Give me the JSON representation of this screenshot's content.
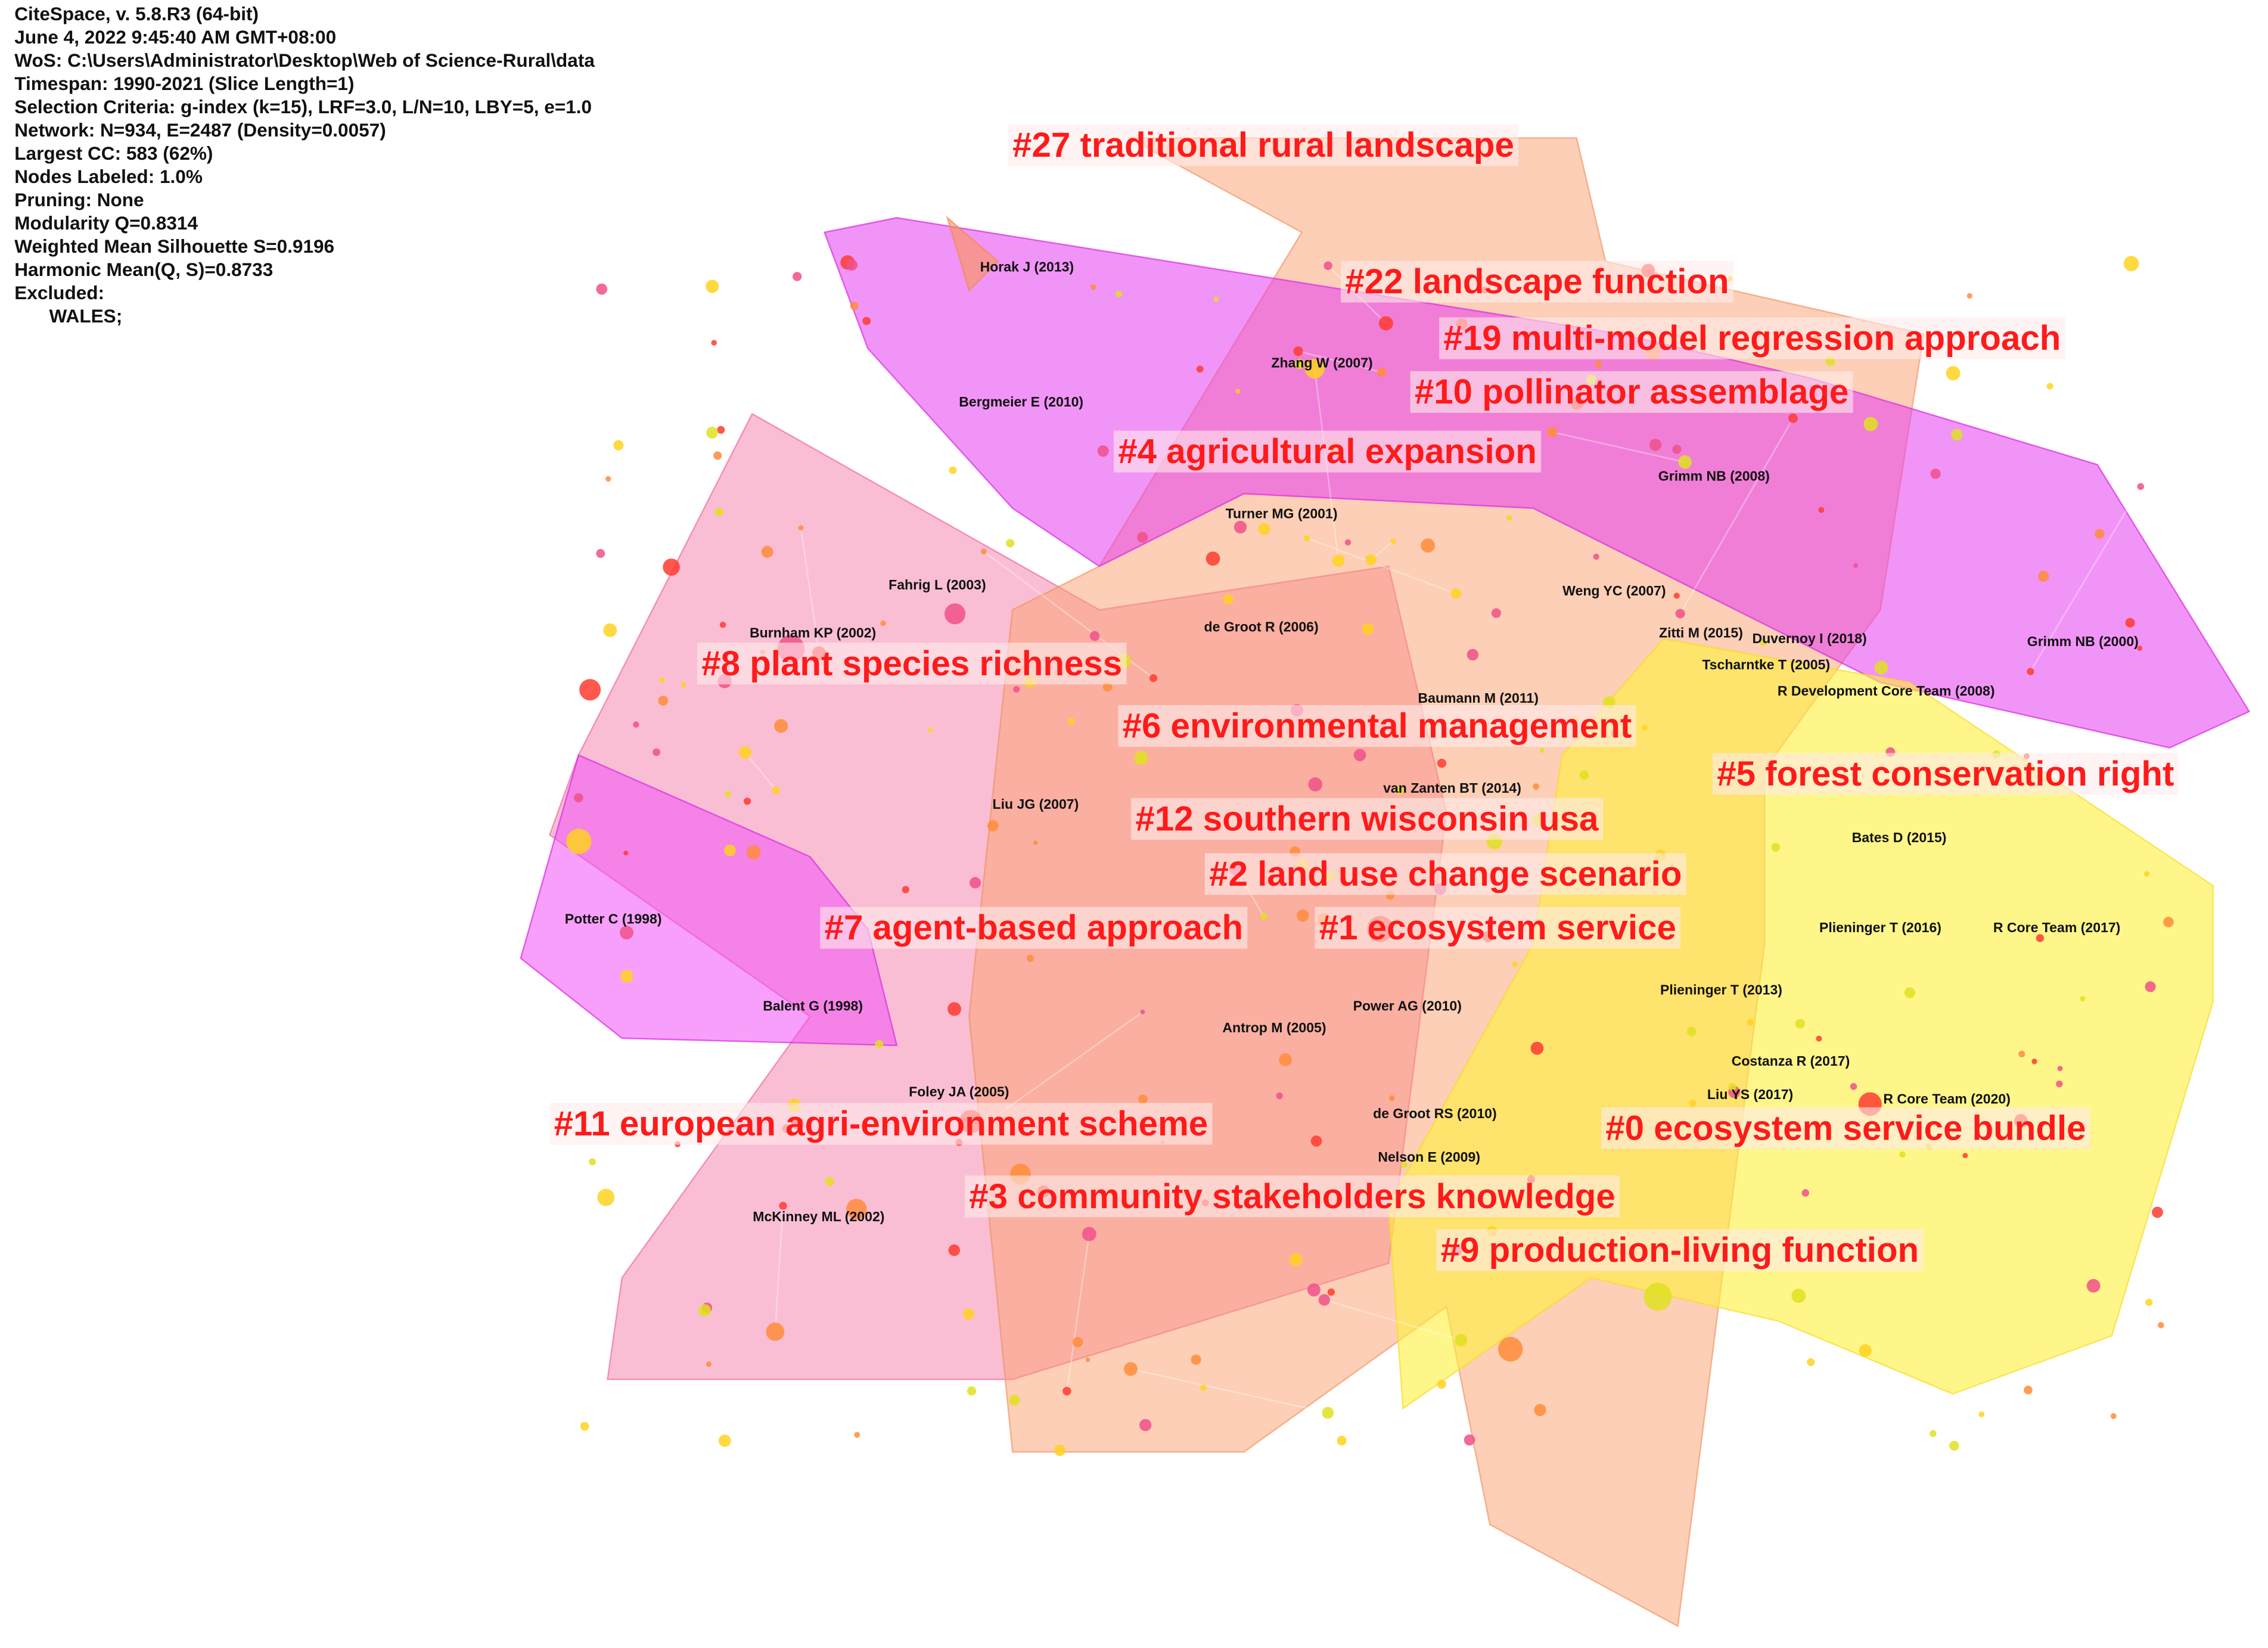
{
  "info": [
    "CiteSpace, v. 5.8.R3 (64-bit)",
    "June 4, 2022 9:45:40 AM GMT+08:00",
    "WoS: C:\\Users\\Administrator\\Desktop\\Web of Science-Rural\\data",
    "Timespan: 1990-2021 (Slice Length=1)",
    "Selection Criteria: g-index (k=15), LRF=3.0, L/N=10, LBY=5, e=1.0",
    "Network: N=934, E=2487 (Density=0.0057)",
    "Largest CC: 583 (62%)",
    "Nodes Labeled: 1.0%",
    "Pruning: None",
    "Modularity Q=0.8314",
    "Weighted Mean Silhouette S=0.9196",
    "Harmonic Mean(Q, S)=0.8733",
    "Excluded:",
    "WALES;"
  ],
  "clusters": [
    "#27 traditional rural landscape",
    "#22 landscape function",
    "#19 multi-model regression approach",
    "#10 pollinator assemblage",
    "#4 agricultural expansion",
    "#8 plant species richness",
    "#6 environmental management",
    "#5 forest conservation right",
    "#12 southern wisconsin usa",
    "#2 land use change scenario",
    "#7 agent-based approach",
    "#1 ecosystem service",
    "#11 european agri-environment scheme",
    "#0 ecosystem service bundle",
    "#3 community stakeholders knowledge",
    "#9 production-living function"
  ],
  "nodes": [
    "Horak J (2013)",
    "Zhang W (2007)",
    "Bergmeier E (2010)",
    "Grimm NB (2008)",
    "Turner MG (2001)",
    "Fahrig L (2003)",
    "Weng YC (2007)",
    "Burnham KP (2002)",
    "de Groot R (2006)",
    "Zitti M (2015)",
    "Duvernoy I (2018)",
    "Grimm NB (2000)",
    "Tscharntke T (2005)",
    "Baumann M (2011)",
    "R Development Core Team (2008)",
    "van Zanten BT (2014)",
    "Liu JG (2007)",
    "Bates D (2015)",
    "Potter C (1998)",
    "Plieninger T (2016)",
    "R Core Team (2017)",
    "Plieninger T (2013)",
    "Balent G (1998)",
    "Power AG (2010)",
    "Antrop M (2005)",
    "Costanza R (2017)",
    "Foley JA (2005)",
    "Liu YS (2017)",
    "R Core Team (2020)",
    "de Groot RS (2010)",
    "Nelson E (2009)",
    "McKinney ML (2002)"
  ]
}
